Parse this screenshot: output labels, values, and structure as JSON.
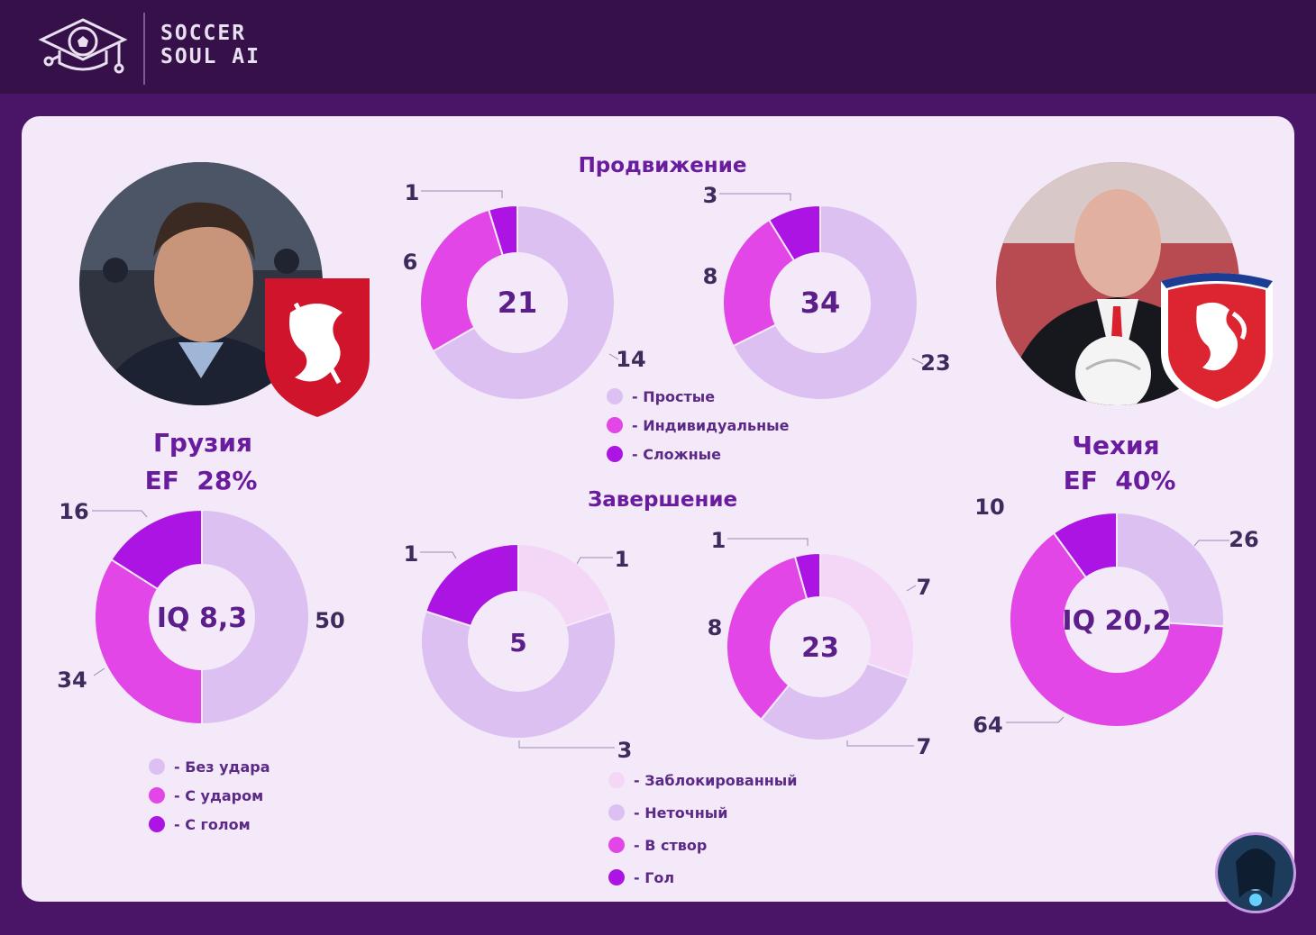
{
  "header": {
    "brand_line1": "SOCCER",
    "brand_line2": "SOUL AI",
    "logo_icon": "soccer-ball-graduation-cap-icon"
  },
  "teams": {
    "left": {
      "name": "Грузия",
      "ef": "EF  28%",
      "crest_icon": "georgia-crest-icon"
    },
    "right": {
      "name": "Чехия",
      "ef": "EF  40%",
      "crest_icon": "czech-lion-crest-icon"
    }
  },
  "sections": {
    "progression": "Продвижение",
    "finishing": "Завершение"
  },
  "legends": {
    "progression": [
      {
        "label": "- Простые",
        "color": "#dcc0f1"
      },
      {
        "label": "- Индивидуальные",
        "color": "#e246e6"
      },
      {
        "label": "- Сложные",
        "color": "#ab14e2"
      }
    ],
    "iq": [
      {
        "label": "- Без удара",
        "color": "#dcc0f1"
      },
      {
        "label": "- С ударом",
        "color": "#e246e6"
      },
      {
        "label": "- С голом",
        "color": "#ab14e2"
      }
    ],
    "finishing": [
      {
        "label": "- Заблокированный",
        "color": "#f4d7f7"
      },
      {
        "label": "- Неточный",
        "color": "#dcc0f1"
      },
      {
        "label": "- В створ",
        "color": "#e246e6"
      },
      {
        "label": "- Гол",
        "color": "#ab14e2"
      }
    ]
  },
  "chart_data": [
    {
      "type": "pie",
      "id": "georgia-iq",
      "center_label": "IQ 8,3",
      "categories": [
        "Без удара",
        "С ударом",
        "С голом"
      ],
      "values": [
        50,
        34,
        16
      ],
      "labels": [
        "50",
        "34",
        "16"
      ],
      "colors": [
        "#dcc0f1",
        "#e246e6",
        "#ab14e2"
      ]
    },
    {
      "type": "pie",
      "id": "georgia-progression",
      "center_label": "21",
      "categories": [
        "Простые",
        "Индивидуальные",
        "Сложные"
      ],
      "values": [
        14,
        6,
        1
      ],
      "labels": [
        "14",
        "6",
        "1"
      ],
      "colors": [
        "#dcc0f1",
        "#e246e6",
        "#ab14e2"
      ]
    },
    {
      "type": "pie",
      "id": "czech-progression",
      "center_label": "34",
      "categories": [
        "Простые",
        "Индивидуальные",
        "Сложные"
      ],
      "values": [
        23,
        8,
        3
      ],
      "labels": [
        "23",
        "8",
        "3"
      ],
      "colors": [
        "#dcc0f1",
        "#e246e6",
        "#ab14e2"
      ]
    },
    {
      "type": "pie",
      "id": "georgia-finishing",
      "center_label": "5",
      "categories": [
        "Заблокированный",
        "Неточный",
        "В створ",
        "Гол"
      ],
      "values": [
        1,
        3,
        0,
        1
      ],
      "labels": [
        "1",
        "3",
        "",
        "1"
      ],
      "colors": [
        "#f4d7f7",
        "#dcc0f1",
        "#e246e6",
        "#ab14e2"
      ]
    },
    {
      "type": "pie",
      "id": "czech-finishing",
      "center_label": "23",
      "categories": [
        "Заблокированный",
        "Неточный",
        "В створ",
        "Гол"
      ],
      "values": [
        7,
        7,
        8,
        1
      ],
      "labels": [
        "7",
        "7",
        "8",
        "1"
      ],
      "colors": [
        "#f4d7f7",
        "#dcc0f1",
        "#e246e6",
        "#ab14e2"
      ]
    },
    {
      "type": "pie",
      "id": "czech-iq",
      "center_label": "IQ 20,2",
      "categories": [
        "Без удара",
        "С ударом",
        "С голом"
      ],
      "values": [
        26,
        64,
        10
      ],
      "labels": [
        "26",
        "64",
        "10"
      ],
      "colors": [
        "#dcc0f1",
        "#e246e6",
        "#ab14e2"
      ]
    }
  ]
}
